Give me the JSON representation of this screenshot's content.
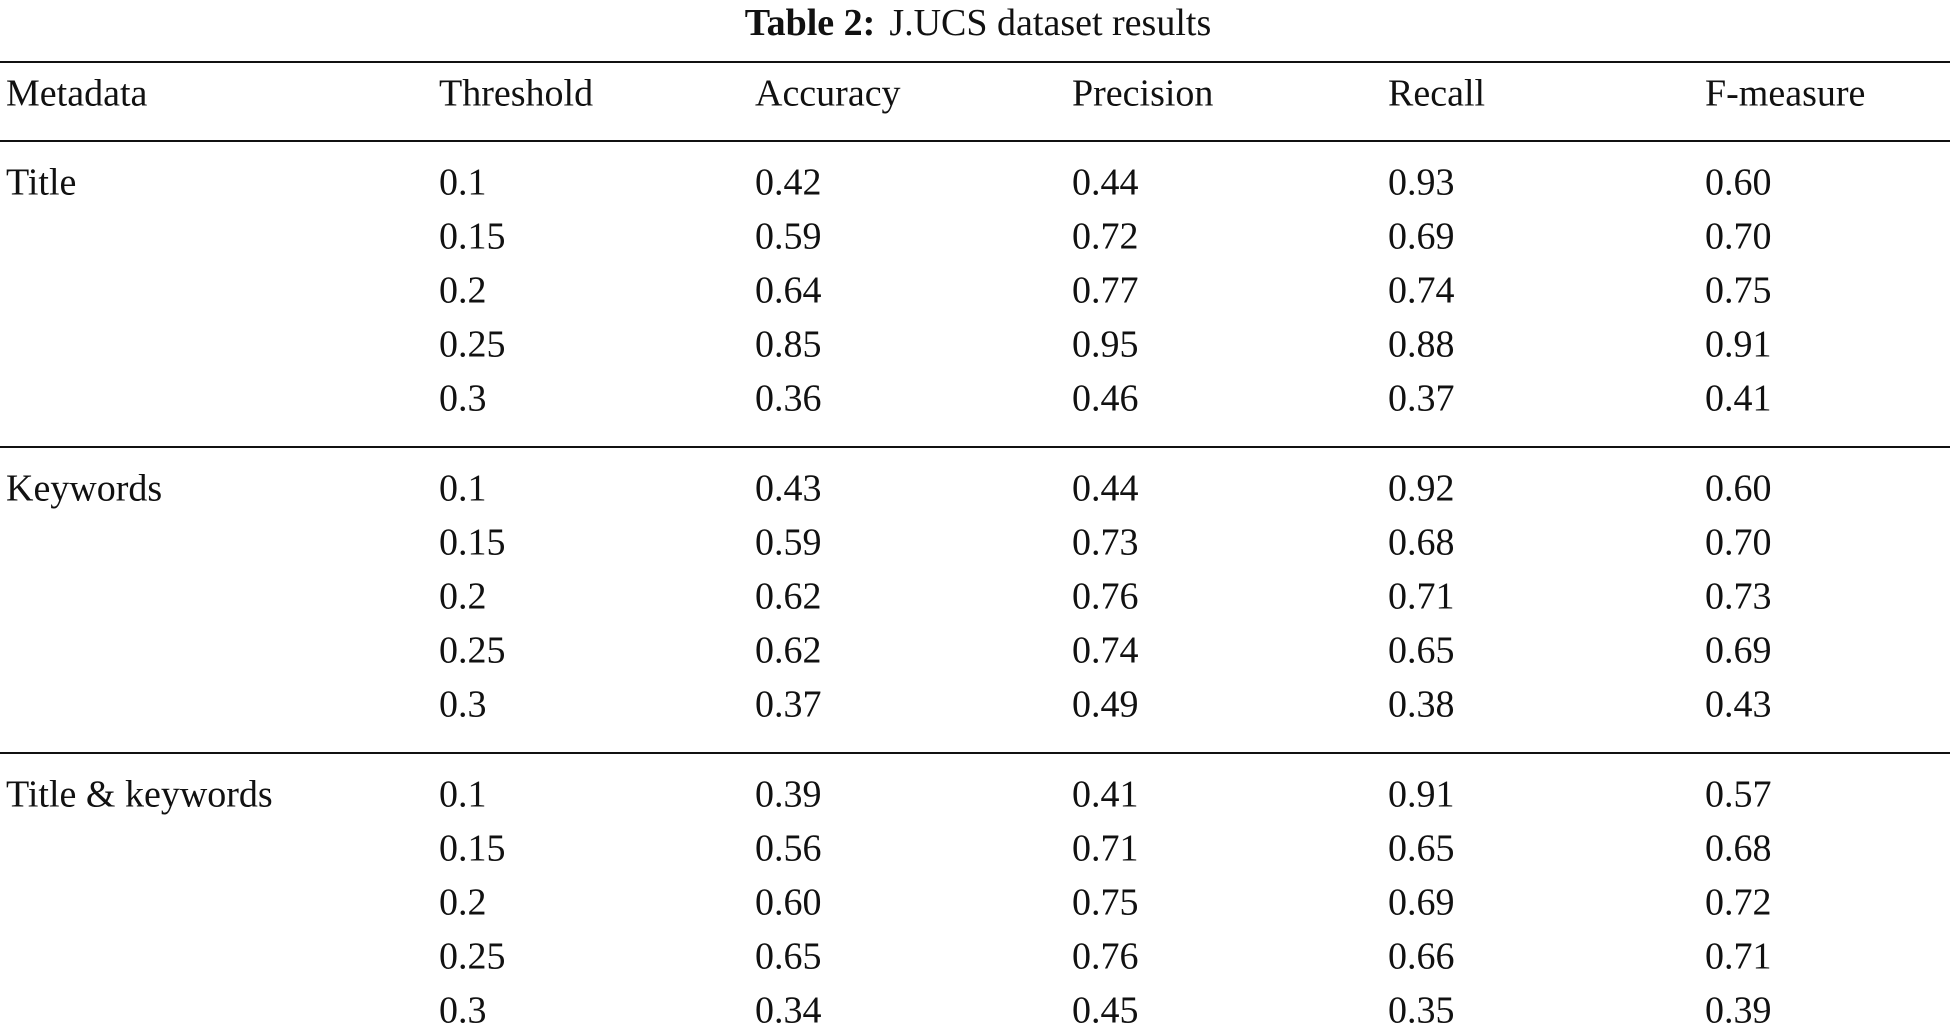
{
  "table": {
    "title": {
      "label": "Table 2:",
      "text": "J.UCS dataset results"
    },
    "columns": [
      "Metadata",
      "Threshold",
      "Accuracy",
      "Precision",
      "Recall",
      "F-measure"
    ],
    "groups": [
      {
        "metadata": "Title",
        "rows": [
          [
            "0.1",
            "0.42",
            "0.44",
            "0.93",
            "0.60"
          ],
          [
            "0.15",
            "0.59",
            "0.72",
            "0.69",
            "0.70"
          ],
          [
            "0.2",
            "0.64",
            "0.77",
            "0.74",
            "0.75"
          ],
          [
            "0.25",
            "0.85",
            "0.95",
            "0.88",
            "0.91"
          ],
          [
            "0.3",
            "0.36",
            "0.46",
            "0.37",
            "0.41"
          ]
        ]
      },
      {
        "metadata": "Keywords",
        "rows": [
          [
            "0.1",
            "0.43",
            "0.44",
            "0.92",
            "0.60"
          ],
          [
            "0.15",
            "0.59",
            "0.73",
            "0.68",
            "0.70"
          ],
          [
            "0.2",
            "0.62",
            "0.76",
            "0.71",
            "0.73"
          ],
          [
            "0.25",
            "0.62",
            "0.74",
            "0.65",
            "0.69"
          ],
          [
            "0.3",
            "0.37",
            "0.49",
            "0.38",
            "0.43"
          ]
        ]
      },
      {
        "metadata": "Title & keywords",
        "rows": [
          [
            "0.1",
            "0.39",
            "0.41",
            "0.91",
            "0.57"
          ],
          [
            "0.15",
            "0.56",
            "0.71",
            "0.65",
            "0.68"
          ],
          [
            "0.2",
            "0.60",
            "0.75",
            "0.69",
            "0.72"
          ],
          [
            "0.25",
            "0.65",
            "0.76",
            "0.66",
            "0.71"
          ],
          [
            "0.3",
            "0.34",
            "0.45",
            "0.35",
            "0.39"
          ]
        ]
      }
    ]
  }
}
